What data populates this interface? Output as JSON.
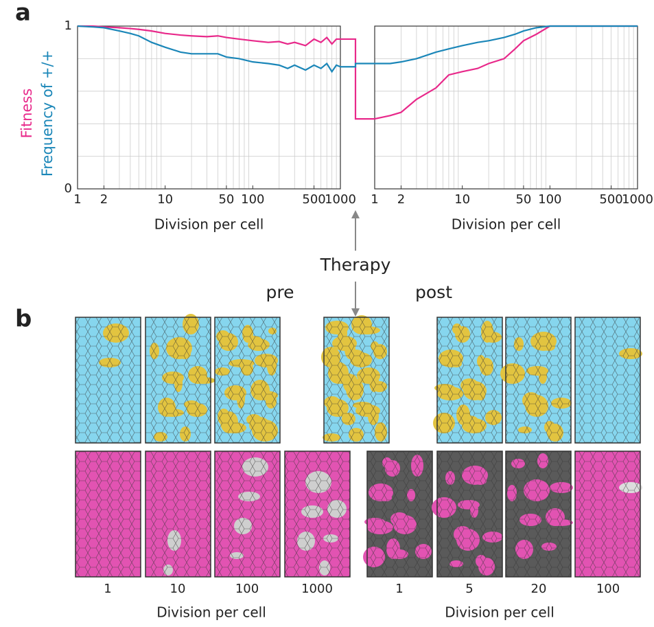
{
  "chart_data": [
    {
      "type": "line",
      "xlabel": "Division per cell",
      "xscale": "log",
      "xlim": [
        1,
        1000
      ],
      "xticks": [
        1,
        2,
        10,
        50,
        100,
        500,
        1000
      ],
      "ylim": [
        0,
        1
      ],
      "yticks": [
        0,
        1
      ],
      "ygrid": [
        0.2,
        0.4,
        0.6,
        0.8
      ],
      "x": [
        1,
        1.5,
        2,
        3,
        4,
        5,
        7,
        10,
        15,
        20,
        30,
        40,
        50,
        70,
        100,
        150,
        200,
        250,
        300,
        400,
        500,
        600,
        700,
        800,
        900,
        1000
      ],
      "series": [
        {
          "name": "Fitness",
          "color": "#e8288a",
          "values": [
            1,
            1,
            0.995,
            0.99,
            0.985,
            0.98,
            0.97,
            0.955,
            0.945,
            0.94,
            0.935,
            0.94,
            0.93,
            0.92,
            0.91,
            0.9,
            0.905,
            0.89,
            0.9,
            0.88,
            0.92,
            0.9,
            0.93,
            0.89,
            0.92,
            0.92
          ]
        },
        {
          "name": "Frequency of +/+",
          "color": "#1a86b8",
          "values": [
            1,
            0.995,
            0.99,
            0.97,
            0.955,
            0.94,
            0.9,
            0.87,
            0.84,
            0.83,
            0.83,
            0.83,
            0.81,
            0.8,
            0.78,
            0.77,
            0.76,
            0.74,
            0.76,
            0.73,
            0.76,
            0.74,
            0.77,
            0.72,
            0.76,
            0.75
          ]
        }
      ]
    },
    {
      "type": "line",
      "xlabel": "Division per cell",
      "xscale": "log",
      "xlim": [
        1,
        1000
      ],
      "xticks": [
        1,
        2,
        10,
        50,
        100,
        500,
        1000
      ],
      "ylim": [
        0,
        1
      ],
      "ygrid": [
        0.2,
        0.4,
        0.6,
        0.8
      ],
      "x": [
        1,
        1.5,
        2,
        3,
        5,
        7,
        10,
        15,
        20,
        30,
        40,
        50,
        70,
        100,
        200,
        500,
        1000
      ],
      "series": [
        {
          "color": "#e8288a",
          "values": [
            0.43,
            0.45,
            0.47,
            0.55,
            0.62,
            0.7,
            0.72,
            0.74,
            0.77,
            0.8,
            0.86,
            0.91,
            0.95,
            1,
            1,
            1,
            1
          ]
        },
        {
          "color": "#1a86b8",
          "values": [
            0.77,
            0.77,
            0.78,
            0.8,
            0.84,
            0.86,
            0.88,
            0.9,
            0.91,
            0.93,
            0.95,
            0.97,
            0.99,
            1,
            1,
            1,
            1
          ]
        }
      ]
    }
  ],
  "panel_labels": [
    "a",
    "b"
  ],
  "therapy": {
    "label": "Therapy",
    "pre": "pre",
    "post": "post"
  },
  "panel_b": {
    "pre": {
      "divisions": [
        1,
        10,
        100,
        1000
      ],
      "xlabel": "Division per cell"
    },
    "post": {
      "divisions": [
        1,
        5,
        20,
        100
      ],
      "xlabel": "Division per cell"
    }
  }
}
